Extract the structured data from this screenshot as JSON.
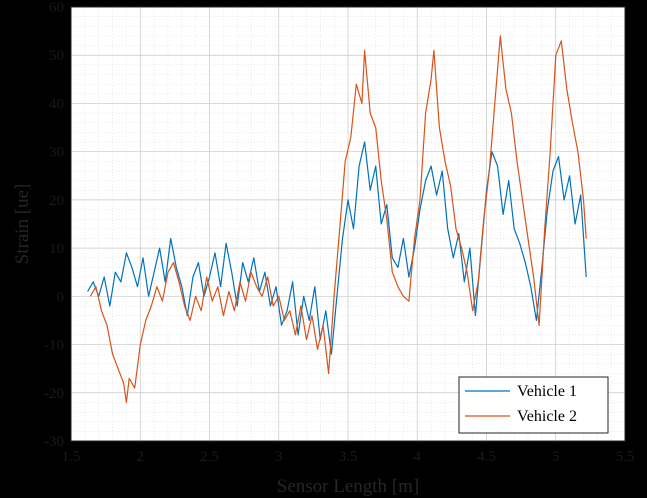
{
  "chart_data": {
    "type": "line",
    "xlabel": "Sensor Length [m]",
    "ylabel": "Strain [ue]",
    "xlim": [
      1.5,
      5.5
    ],
    "ylim": [
      -30,
      60
    ],
    "xticks": [
      "1.5",
      "2",
      "2.5",
      "3",
      "3.5",
      "4",
      "4.5",
      "5",
      "5.5"
    ],
    "yticks": [
      "-30",
      "-20",
      "-10",
      "0",
      "10",
      "20",
      "30",
      "40",
      "50",
      "60"
    ],
    "grid": "on (minor dotted)",
    "legend_position": "bottom-right",
    "series": [
      {
        "name": "Vehicle 1",
        "color": "#0072BD",
        "points": [
          [
            1.62,
            1
          ],
          [
            1.66,
            3
          ],
          [
            1.7,
            0
          ],
          [
            1.74,
            4
          ],
          [
            1.78,
            -2
          ],
          [
            1.82,
            5
          ],
          [
            1.86,
            3
          ],
          [
            1.9,
            9
          ],
          [
            1.94,
            6
          ],
          [
            1.98,
            2
          ],
          [
            2.02,
            8
          ],
          [
            2.06,
            0
          ],
          [
            2.1,
            5
          ],
          [
            2.14,
            10
          ],
          [
            2.18,
            3
          ],
          [
            2.22,
            12
          ],
          [
            2.26,
            6
          ],
          [
            2.3,
            2
          ],
          [
            2.34,
            -4
          ],
          [
            2.38,
            4
          ],
          [
            2.42,
            7
          ],
          [
            2.46,
            0
          ],
          [
            2.5,
            4
          ],
          [
            2.54,
            9
          ],
          [
            2.58,
            2
          ],
          [
            2.62,
            11
          ],
          [
            2.66,
            5
          ],
          [
            2.7,
            -2
          ],
          [
            2.74,
            7
          ],
          [
            2.78,
            3
          ],
          [
            2.82,
            8
          ],
          [
            2.86,
            1
          ],
          [
            2.9,
            5
          ],
          [
            2.94,
            -2
          ],
          [
            2.98,
            2
          ],
          [
            3.02,
            -6
          ],
          [
            3.06,
            -3
          ],
          [
            3.1,
            3
          ],
          [
            3.14,
            -8
          ],
          [
            3.18,
            0
          ],
          [
            3.22,
            -5
          ],
          [
            3.26,
            2
          ],
          [
            3.3,
            -9
          ],
          [
            3.34,
            -3
          ],
          [
            3.38,
            -12
          ],
          [
            3.42,
            0
          ],
          [
            3.46,
            12
          ],
          [
            3.5,
            20
          ],
          [
            3.54,
            14
          ],
          [
            3.58,
            27
          ],
          [
            3.62,
            32
          ],
          [
            3.66,
            22
          ],
          [
            3.7,
            27
          ],
          [
            3.74,
            15
          ],
          [
            3.78,
            19
          ],
          [
            3.82,
            8
          ],
          [
            3.86,
            6
          ],
          [
            3.9,
            12
          ],
          [
            3.94,
            4
          ],
          [
            3.98,
            10
          ],
          [
            4.02,
            18
          ],
          [
            4.06,
            24
          ],
          [
            4.1,
            27
          ],
          [
            4.14,
            21
          ],
          [
            4.18,
            26
          ],
          [
            4.22,
            14
          ],
          [
            4.26,
            8
          ],
          [
            4.3,
            13
          ],
          [
            4.34,
            3
          ],
          [
            4.38,
            10
          ],
          [
            4.42,
            -4
          ],
          [
            4.46,
            9
          ],
          [
            4.5,
            22
          ],
          [
            4.54,
            30
          ],
          [
            4.58,
            27
          ],
          [
            4.62,
            17
          ],
          [
            4.66,
            24
          ],
          [
            4.7,
            14
          ],
          [
            4.74,
            11
          ],
          [
            4.78,
            7
          ],
          [
            4.82,
            2
          ],
          [
            4.86,
            -5
          ],
          [
            4.9,
            6
          ],
          [
            4.94,
            18
          ],
          [
            4.98,
            26
          ],
          [
            5.02,
            29
          ],
          [
            5.06,
            20
          ],
          [
            5.1,
            25
          ],
          [
            5.14,
            15
          ],
          [
            5.18,
            21
          ],
          [
            5.22,
            4
          ]
        ]
      },
      {
        "name": "Vehicle 2",
        "color": "#D95319",
        "points": [
          [
            1.64,
            0
          ],
          [
            1.68,
            2
          ],
          [
            1.72,
            -3
          ],
          [
            1.76,
            -6
          ],
          [
            1.8,
            -12
          ],
          [
            1.84,
            -15
          ],
          [
            1.88,
            -18
          ],
          [
            1.9,
            -22
          ],
          [
            1.92,
            -17
          ],
          [
            1.96,
            -19
          ],
          [
            2.0,
            -10
          ],
          [
            2.04,
            -5
          ],
          [
            2.08,
            -2
          ],
          [
            2.12,
            2
          ],
          [
            2.16,
            -1
          ],
          [
            2.2,
            5
          ],
          [
            2.24,
            7
          ],
          [
            2.28,
            3
          ],
          [
            2.32,
            -2
          ],
          [
            2.36,
            -5
          ],
          [
            2.4,
            0
          ],
          [
            2.44,
            -3
          ],
          [
            2.48,
            4
          ],
          [
            2.52,
            -1
          ],
          [
            2.56,
            2
          ],
          [
            2.6,
            -4
          ],
          [
            2.64,
            1
          ],
          [
            2.68,
            -3
          ],
          [
            2.72,
            3
          ],
          [
            2.76,
            -1
          ],
          [
            2.8,
            5
          ],
          [
            2.84,
            2
          ],
          [
            2.88,
            0
          ],
          [
            2.92,
            4
          ],
          [
            2.96,
            -2
          ],
          [
            3.0,
            0
          ],
          [
            3.04,
            -5
          ],
          [
            3.08,
            -3
          ],
          [
            3.12,
            -8
          ],
          [
            3.16,
            -2
          ],
          [
            3.2,
            -9
          ],
          [
            3.24,
            -4
          ],
          [
            3.28,
            -11
          ],
          [
            3.32,
            -6
          ],
          [
            3.36,
            -16
          ],
          [
            3.4,
            0
          ],
          [
            3.44,
            14
          ],
          [
            3.48,
            28
          ],
          [
            3.52,
            33
          ],
          [
            3.56,
            44
          ],
          [
            3.6,
            40
          ],
          [
            3.62,
            51
          ],
          [
            3.66,
            38
          ],
          [
            3.7,
            35
          ],
          [
            3.74,
            24
          ],
          [
            3.78,
            16
          ],
          [
            3.82,
            5
          ],
          [
            3.86,
            2
          ],
          [
            3.9,
            0
          ],
          [
            3.94,
            -1
          ],
          [
            3.98,
            12
          ],
          [
            4.02,
            20
          ],
          [
            4.06,
            38
          ],
          [
            4.1,
            45
          ],
          [
            4.12,
            51
          ],
          [
            4.16,
            35
          ],
          [
            4.2,
            28
          ],
          [
            4.24,
            23
          ],
          [
            4.28,
            14
          ],
          [
            4.32,
            10
          ],
          [
            4.36,
            5
          ],
          [
            4.4,
            -3
          ],
          [
            4.44,
            3
          ],
          [
            4.48,
            16
          ],
          [
            4.52,
            26
          ],
          [
            4.56,
            40
          ],
          [
            4.6,
            54
          ],
          [
            4.64,
            43
          ],
          [
            4.68,
            38
          ],
          [
            4.72,
            28
          ],
          [
            4.76,
            20
          ],
          [
            4.8,
            12
          ],
          [
            4.84,
            4
          ],
          [
            4.88,
            -6
          ],
          [
            4.92,
            14
          ],
          [
            4.96,
            30
          ],
          [
            5.0,
            50
          ],
          [
            5.04,
            53
          ],
          [
            5.08,
            43
          ],
          [
            5.12,
            36
          ],
          [
            5.16,
            30
          ],
          [
            5.2,
            20
          ],
          [
            5.22,
            12
          ]
        ]
      }
    ]
  }
}
